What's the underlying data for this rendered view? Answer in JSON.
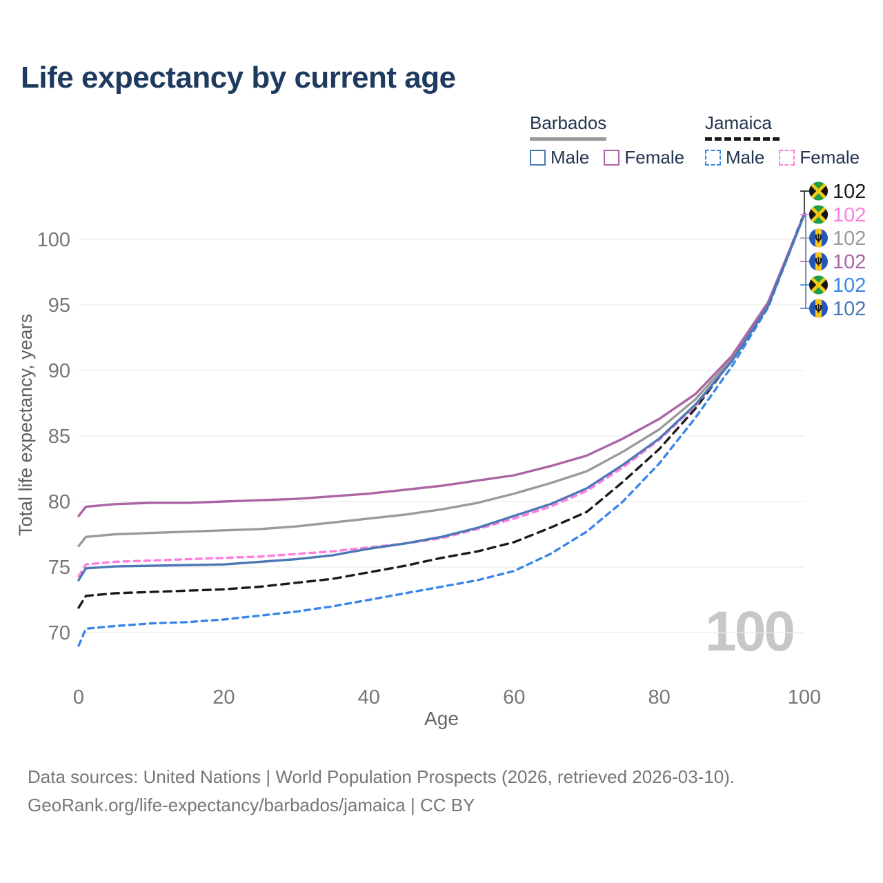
{
  "title": "Life expectancy by current age",
  "legend": {
    "barbados": {
      "label": "Barbados",
      "male_label": "Male",
      "female_label": "Female"
    },
    "jamaica": {
      "label": "Jamaica",
      "male_label": "Male",
      "female_label": "Female"
    }
  },
  "chart_data": {
    "type": "line",
    "title": "Life expectancy by current age",
    "xlabel": "Age",
    "ylabel": "Total life expectancy, years",
    "x_ticks": [
      0,
      20,
      40,
      60,
      80,
      100
    ],
    "y_ticks": [
      70,
      75,
      80,
      85,
      90,
      95,
      100
    ],
    "xlim": [
      0,
      100
    ],
    "ylim": [
      68.5,
      103
    ],
    "grid": "horizontal-only",
    "legend_position": "top-right",
    "watermark": "100",
    "colors": {
      "barbados_male": "#4a78b5",
      "barbados_female": "#ab64a5",
      "barbados_total": "#9a9a9a",
      "jamaica_male": "#3a86e9",
      "jamaica_female": "#ff7ddf",
      "jamaica_total": "#1a1a1a"
    },
    "ages": [
      0,
      1,
      5,
      10,
      15,
      20,
      25,
      30,
      35,
      40,
      45,
      50,
      55,
      60,
      65,
      70,
      75,
      80,
      85,
      90,
      95,
      100
    ],
    "series": [
      {
        "id": "jamaica_total",
        "name": "Jamaica (both sexes)",
        "country": "Jamaica",
        "color": "#1a1a1a",
        "dash": "11 8",
        "values": [
          71.9,
          72.8,
          73.0,
          73.1,
          73.2,
          73.3,
          73.5,
          73.8,
          74.1,
          74.6,
          75.1,
          75.7,
          76.2,
          76.9,
          78.0,
          79.2,
          81.5,
          84.0,
          87.1,
          90.8,
          95.1,
          102.0
        ],
        "end": {
          "value": "102",
          "row": 0,
          "flag": "jamaica"
        }
      },
      {
        "id": "jamaica_female",
        "name": "Jamaica Female",
        "country": "Jamaica",
        "color": "#ff7ddf",
        "dash": "8 7",
        "values": [
          74.3,
          75.2,
          75.4,
          75.5,
          75.6,
          75.7,
          75.8,
          76.0,
          76.2,
          76.5,
          76.8,
          77.2,
          77.9,
          78.7,
          79.6,
          80.8,
          82.6,
          84.7,
          87.3,
          90.8,
          95.1,
          102.0
        ],
        "end": {
          "value": "102",
          "row": 1,
          "flag": "jamaica"
        }
      },
      {
        "id": "barbados_total",
        "name": "Barbados (both sexes)",
        "country": "Barbados",
        "color": "#9a9a9a",
        "dash": null,
        "values": [
          76.6,
          77.3,
          77.5,
          77.6,
          77.7,
          77.8,
          77.9,
          78.1,
          78.4,
          78.7,
          79.0,
          79.4,
          79.9,
          80.6,
          81.4,
          82.3,
          83.8,
          85.5,
          87.8,
          90.9,
          95.0,
          101.9
        ],
        "end": {
          "value": "102",
          "row": 2,
          "flag": "barbados"
        }
      },
      {
        "id": "barbados_female",
        "name": "Barbados Female",
        "country": "Barbados",
        "color": "#ab64a5",
        "dash": null,
        "values": [
          78.9,
          79.6,
          79.8,
          79.9,
          79.9,
          80.0,
          80.1,
          80.2,
          80.4,
          80.6,
          80.9,
          81.2,
          81.6,
          82.0,
          82.7,
          83.5,
          84.8,
          86.3,
          88.2,
          91.1,
          95.2,
          101.9
        ],
        "end": {
          "value": "102",
          "row": 3,
          "flag": "barbados"
        }
      },
      {
        "id": "jamaica_male",
        "name": "Jamaica Male",
        "country": "Jamaica",
        "color": "#3a86e9",
        "dash": "8 7",
        "values": [
          69.0,
          70.3,
          70.5,
          70.7,
          70.8,
          71.0,
          71.3,
          71.6,
          72.0,
          72.5,
          73.0,
          73.5,
          74.0,
          74.7,
          76.0,
          77.7,
          80.0,
          82.9,
          86.4,
          90.3,
          94.8,
          101.9
        ],
        "end": {
          "value": "102",
          "row": 4,
          "flag": "jamaica"
        }
      },
      {
        "id": "barbados_male",
        "name": "Barbados Male",
        "country": "Barbados",
        "color": "#4a78b5",
        "dash": null,
        "values": [
          74.0,
          74.9,
          75.05,
          75.1,
          75.15,
          75.2,
          75.4,
          75.6,
          75.9,
          76.4,
          76.8,
          77.3,
          78.0,
          78.9,
          79.8,
          81.0,
          82.8,
          84.8,
          87.4,
          90.7,
          94.9,
          101.9
        ],
        "end": {
          "value": "102",
          "row": 5,
          "flag": "barbados"
        }
      }
    ]
  },
  "footer": {
    "line1": "Data sources: United Nations | World Population Prospects (2026, retrieved 2026-03-10).",
    "line2": "GeoRank.org/life-expectancy/barbados/jamaica | CC BY"
  }
}
